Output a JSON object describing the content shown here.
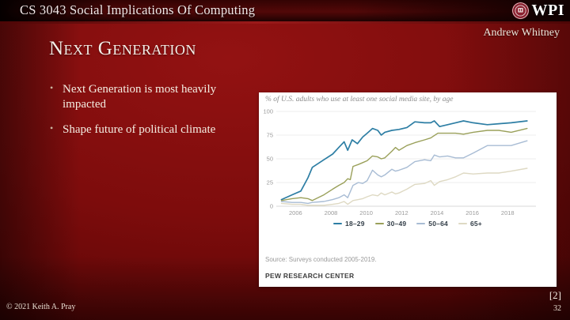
{
  "colors": {
    "slide_red": "#7d0c0c",
    "header_bar_red": "#520808",
    "panel_bg": "#ffffff"
  },
  "header": {
    "course_title": "CS 3043 Social Implications Of Computing",
    "logo_text": "WPI",
    "author": "Andrew Whitney"
  },
  "slide": {
    "title": "Next Generation",
    "bullets": [
      "Next Generation is most heavily impacted",
      "Shape future of political climate"
    ]
  },
  "chart_data": {
    "type": "line",
    "title": "% of U.S. adults who use at least one social media site, by age",
    "source": "Source: Surveys conducted 2005-2019.",
    "brand": "PEW RESEARCH CENTER",
    "xlim": [
      2005,
      2019.6
    ],
    "ylim": [
      0,
      100
    ],
    "x_ticks": [
      2006,
      2008,
      2010,
      2012,
      2014,
      2016,
      2018
    ],
    "y_ticks": [
      0,
      25,
      50,
      75,
      100
    ],
    "grid": true,
    "legend_position": "bottom",
    "series": [
      {
        "name": "18–29",
        "color": "#2d7ea4",
        "points": [
          [
            2005.2,
            7
          ],
          [
            2005.8,
            12
          ],
          [
            2006.3,
            16
          ],
          [
            2006.7,
            30
          ],
          [
            2006.95,
            41
          ],
          [
            2007.6,
            49
          ],
          [
            2008.1,
            55
          ],
          [
            2008.45,
            62
          ],
          [
            2008.75,
            68
          ],
          [
            2008.95,
            59
          ],
          [
            2009.2,
            70
          ],
          [
            2009.5,
            66
          ],
          [
            2009.8,
            73
          ],
          [
            2010.05,
            77
          ],
          [
            2010.35,
            82
          ],
          [
            2010.65,
            80
          ],
          [
            2010.85,
            75
          ],
          [
            2011.05,
            78
          ],
          [
            2011.45,
            80
          ],
          [
            2011.85,
            81
          ],
          [
            2012.3,
            83
          ],
          [
            2012.75,
            89
          ],
          [
            2013.3,
            88
          ],
          [
            2013.65,
            88
          ],
          [
            2013.85,
            90
          ],
          [
            2014.15,
            84
          ],
          [
            2014.6,
            86
          ],
          [
            2015.05,
            88
          ],
          [
            2015.5,
            90
          ],
          [
            2016.05,
            88
          ],
          [
            2016.85,
            86
          ],
          [
            2017.5,
            87
          ],
          [
            2018.2,
            88
          ],
          [
            2019.1,
            90
          ]
        ]
      },
      {
        "name": "30–49",
        "color": "#9aa05a",
        "points": [
          [
            2005.2,
            6
          ],
          [
            2005.8,
            8
          ],
          [
            2006.3,
            9
          ],
          [
            2006.7,
            8
          ],
          [
            2006.95,
            6
          ],
          [
            2007.6,
            12
          ],
          [
            2008.1,
            18
          ],
          [
            2008.45,
            22
          ],
          [
            2008.75,
            25
          ],
          [
            2008.95,
            29
          ],
          [
            2009.1,
            28
          ],
          [
            2009.25,
            42
          ],
          [
            2009.55,
            44
          ],
          [
            2009.8,
            46
          ],
          [
            2010.05,
            48
          ],
          [
            2010.35,
            53
          ],
          [
            2010.65,
            52
          ],
          [
            2010.85,
            50
          ],
          [
            2011.05,
            51
          ],
          [
            2011.45,
            58
          ],
          [
            2011.65,
            62
          ],
          [
            2011.85,
            59
          ],
          [
            2012.3,
            64
          ],
          [
            2012.75,
            67
          ],
          [
            2013.3,
            70
          ],
          [
            2013.65,
            72
          ],
          [
            2014.05,
            77
          ],
          [
            2014.6,
            77
          ],
          [
            2015.05,
            77
          ],
          [
            2015.5,
            76
          ],
          [
            2016.05,
            78
          ],
          [
            2016.85,
            80
          ],
          [
            2017.5,
            80
          ],
          [
            2018.2,
            78
          ],
          [
            2019.1,
            82
          ]
        ]
      },
      {
        "name": "50–64",
        "color": "#a8bcd4",
        "points": [
          [
            2005.2,
            5
          ],
          [
            2005.8,
            4
          ],
          [
            2006.3,
            4
          ],
          [
            2006.7,
            3
          ],
          [
            2006.95,
            4
          ],
          [
            2007.6,
            5
          ],
          [
            2008.1,
            7
          ],
          [
            2008.45,
            9
          ],
          [
            2008.75,
            12
          ],
          [
            2008.95,
            9
          ],
          [
            2009.25,
            22
          ],
          [
            2009.55,
            25
          ],
          [
            2009.8,
            24
          ],
          [
            2010.05,
            27
          ],
          [
            2010.35,
            38
          ],
          [
            2010.65,
            33
          ],
          [
            2010.85,
            31
          ],
          [
            2011.05,
            33
          ],
          [
            2011.45,
            39
          ],
          [
            2011.65,
            37
          ],
          [
            2011.85,
            38
          ],
          [
            2012.3,
            41
          ],
          [
            2012.75,
            47
          ],
          [
            2013.3,
            49
          ],
          [
            2013.65,
            48
          ],
          [
            2013.85,
            54
          ],
          [
            2014.15,
            52
          ],
          [
            2014.6,
            53
          ],
          [
            2015.05,
            51
          ],
          [
            2015.5,
            51
          ],
          [
            2016.05,
            56
          ],
          [
            2016.85,
            64
          ],
          [
            2017.5,
            64
          ],
          [
            2018.2,
            64
          ],
          [
            2019.1,
            69
          ]
        ]
      },
      {
        "name": "65+",
        "color": "#ded9c3",
        "points": [
          [
            2005.2,
            3
          ],
          [
            2005.8,
            2
          ],
          [
            2006.3,
            2
          ],
          [
            2006.7,
            1
          ],
          [
            2006.95,
            1
          ],
          [
            2007.6,
            1
          ],
          [
            2008.1,
            2
          ],
          [
            2008.45,
            3
          ],
          [
            2008.75,
            5
          ],
          [
            2008.95,
            2
          ],
          [
            2009.25,
            6
          ],
          [
            2009.55,
            7
          ],
          [
            2009.8,
            8
          ],
          [
            2010.05,
            10
          ],
          [
            2010.35,
            12
          ],
          [
            2010.65,
            11
          ],
          [
            2010.85,
            14
          ],
          [
            2011.05,
            12
          ],
          [
            2011.45,
            15
          ],
          [
            2011.65,
            13
          ],
          [
            2011.85,
            14
          ],
          [
            2012.3,
            18
          ],
          [
            2012.75,
            23
          ],
          [
            2013.3,
            24
          ],
          [
            2013.65,
            27
          ],
          [
            2013.85,
            22
          ],
          [
            2014.15,
            26
          ],
          [
            2014.6,
            28
          ],
          [
            2015.05,
            31
          ],
          [
            2015.5,
            35
          ],
          [
            2016.05,
            34
          ],
          [
            2016.85,
            35
          ],
          [
            2017.5,
            35
          ],
          [
            2018.2,
            37
          ],
          [
            2019.1,
            40
          ]
        ]
      }
    ]
  },
  "footer": {
    "reference": "[2]",
    "copyright": "© 2021 Keith A. Pray",
    "page_number": "32"
  }
}
